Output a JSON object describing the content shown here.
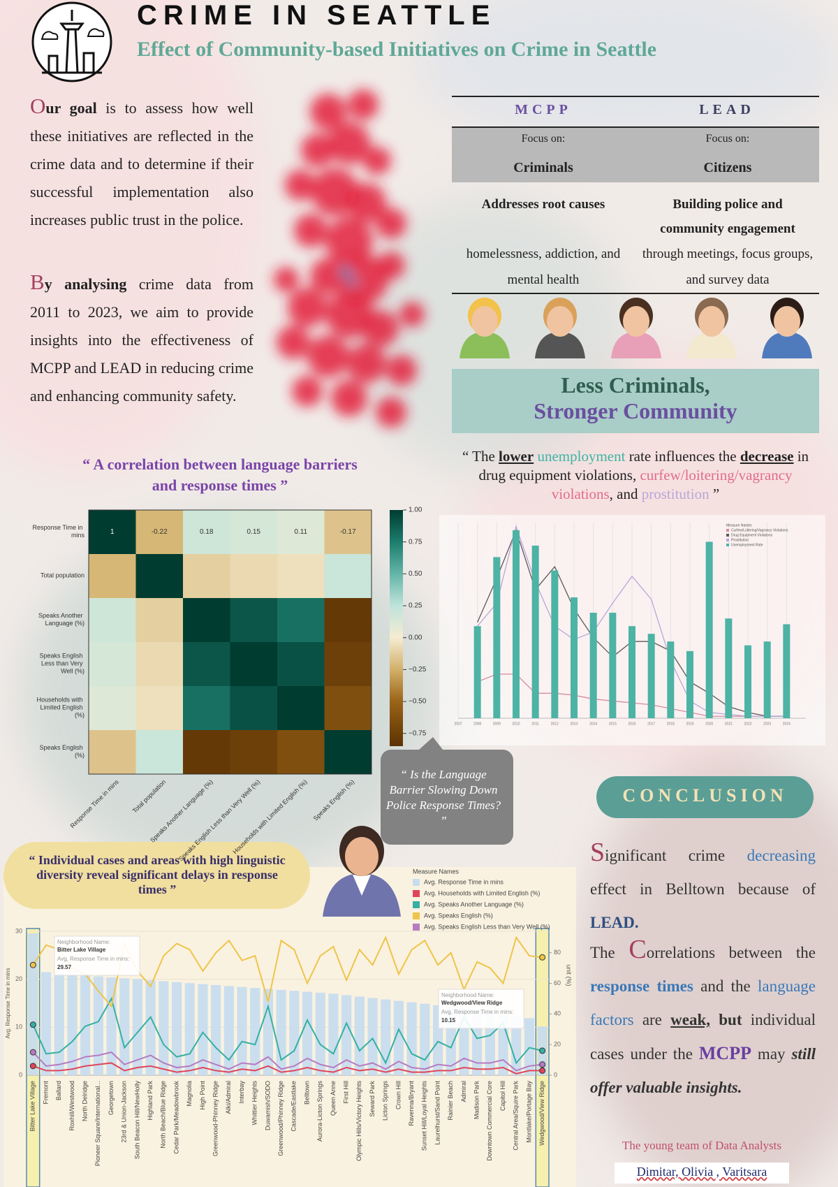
{
  "header": {
    "title": "CRIME IN SEATTLE",
    "subtitle": "Effect of Community-based Initiatives on Crime in Seattle"
  },
  "intro": {
    "p1": [
      "O",
      "ur goal",
      " is to assess how well these initiatives are reflected in the crime data and to determine if their successful implementation also increases public trust in the police."
    ],
    "p2": [
      "B",
      "y analysing",
      " crime data from 2011 to 2023, we aim to provide insights into the effectiveness of MCPP and LEAD in reducing crime and enhancing community safety."
    ]
  },
  "programs": [
    {
      "name": "MCPP",
      "focus_label": "Focus on:",
      "focus": "Criminals",
      "heading": "Addresses root causes",
      "detail": "homelessness, addiction, and mental health"
    },
    {
      "name": "LEAD",
      "focus_label": "Focus on:",
      "focus": "Citizens",
      "heading": "Building police and community engagement",
      "detail": "through meetings, focus groups, and survey data"
    }
  ],
  "banner": [
    "Less Criminals,",
    "Stronger Community"
  ],
  "trend_quote": [
    "“ The ",
    "lower",
    " unemployment",
    " rate influences the ",
    "decrease",
    " in drug equipment violations, ",
    "curfew/loitering/vagrancy violations",
    ", and ",
    "prostitution",
    " ”"
  ],
  "trend_chart": {
    "type": "bar-line",
    "legend_title": "Measure Names",
    "x": [
      2008,
      2009,
      2010,
      2011,
      2012,
      2013,
      2014,
      2015,
      2016,
      2017,
      2018,
      2019,
      2020,
      2021,
      2022,
      2023,
      2024
    ],
    "xlim": [
      2007,
      2025
    ],
    "xticks": [
      2007,
      2008,
      2009,
      2010,
      2011,
      2012,
      2013,
      2014,
      2015,
      2016,
      2017,
      2018,
      2019,
      2020,
      2021,
      2022,
      2023,
      2024
    ],
    "ylim": [
      0,
      10.2
    ],
    "series": [
      {
        "name": "Curfew/Loitering/Vagrancy Violations",
        "type": "line",
        "color": "#d98aa1",
        "values": [
          1.9,
          2.3,
          2.3,
          1.3,
          1.3,
          1.2,
          1.0,
          0.9,
          0.8,
          0.7,
          0.5,
          0.3,
          0.1,
          0.1,
          0.1,
          0.1,
          0.1
        ]
      },
      {
        "name": "Drug Equipment Violations",
        "type": "line",
        "color": "#5a5a5a",
        "values": [
          5.0,
          7.3,
          9.8,
          6.7,
          7.9,
          5.7,
          4.2,
          3.2,
          4.0,
          4.0,
          3.5,
          1.9,
          1.3,
          0.6,
          0.3,
          0.1,
          0.1
        ]
      },
      {
        "name": "Prostitution",
        "type": "line",
        "color": "#b9a6d8",
        "values": [
          4.8,
          6.0,
          10.0,
          7.1,
          4.8,
          4.1,
          4.5,
          6.0,
          7.4,
          6.2,
          3.0,
          0.9,
          0.3,
          0.2,
          0.1,
          0.1,
          0.1
        ]
      },
      {
        "name": "Unemployment Rate",
        "type": "bar",
        "color": "#4db3a4",
        "values": [
          4.8,
          8.4,
          9.8,
          9.0,
          7.7,
          6.3,
          5.5,
          5.5,
          4.8,
          4.4,
          4.0,
          3.5,
          9.2,
          5.2,
          3.8,
          4.0,
          4.9
        ]
      }
    ]
  },
  "heatmap": {
    "type": "heatmap",
    "title": "“ A correlation between language barriers and response times ”",
    "labels": [
      "Response Time in mins",
      "Total population",
      "Speaks Another Language (%)",
      "Speaks English Less than Very Well (%)",
      "Households with Limited English (%)",
      "Speaks English (%)"
    ],
    "values": [
      [
        1,
        -0.22,
        0.18,
        0.15,
        0.11,
        -0.17
      ],
      [
        -0.22,
        1,
        -0.12,
        -0.08,
        -0.05,
        0.2
      ],
      [
        0.18,
        -0.12,
        1,
        0.9,
        0.8,
        -0.8
      ],
      [
        0.15,
        -0.08,
        0.9,
        1,
        0.92,
        -0.75
      ],
      [
        0.11,
        -0.05,
        0.8,
        0.92,
        1,
        -0.65
      ],
      [
        -0.17,
        0.2,
        -0.8,
        -0.75,
        -0.65,
        1
      ]
    ],
    "vlim": [
      -0.85,
      1
    ],
    "ticks": [
      {
        "value": 1,
        "label": "1.00"
      },
      {
        "value": 0.75,
        "label": "0.75"
      },
      {
        "value": 0.5,
        "label": "0.50"
      },
      {
        "value": 0.25,
        "label": "0.25"
      },
      {
        "value": 0,
        "label": "0.00"
      },
      {
        "value": -0.25,
        "label": "−0.25"
      },
      {
        "value": -0.5,
        "label": "−0.50"
      },
      {
        "value": -0.75,
        "label": "−0.75"
      }
    ]
  },
  "bubble_quote": "“ Is the Language Barrier Slowing Down Police Response Times? ”",
  "cases_quote": "“ Individual cases and areas with high linguistic diversity reveal significant delays in response times ”",
  "response_chart": {
    "type": "bar-line",
    "legend_title": "Measure Names",
    "ylabel": "Avg. Response Time in mins",
    "y2label": "unit (%)",
    "categories": [
      "Bitter Lake Village",
      "Fremont",
      "Ballard",
      "Roxhill/Westwood",
      "North Delridge",
      "Pioneer Square/International...",
      "Georgetown",
      "23rd & Union-Jackson",
      "South Beacon Hill/NewHolly",
      "Highland Park",
      "North Beach/Blue Ridge",
      "Cedar Park/Meadowbrook",
      "Magnolia",
      "High Point",
      "Greenwood-Phinney Ridge",
      "Alki/Admiral",
      "Interbay",
      "Whittier Heights",
      "Duwamish/SODO",
      "Greenwood/Phinney Ridge",
      "Cascade/Eastlake",
      "Belltown",
      "Aurora-Licton Springs",
      "Queen Anne",
      "First Hill",
      "Olympic Hills/Victory Heights",
      "Seward Park",
      "Licton Springs",
      "Crown Hill",
      "Ravenna/Bryant",
      "Sunset Hill/Loyal Heights",
      "Laurelhurst/Sand Point",
      "Rainier Beach",
      "Admiral",
      "Madison Park",
      "Downtown Commercial Core",
      "Capitol Hill",
      "Central Area/Squire Park",
      "Montlake/Portage Bay",
      "Wedgwood/View Ridge"
    ],
    "ylim": [
      0,
      30
    ],
    "yticks": [
      0,
      10,
      20,
      30
    ],
    "y2lim": [
      0,
      94
    ],
    "y2ticks": [
      0,
      20,
      40,
      60,
      80
    ],
    "series": [
      {
        "name": "Avg. Response Time in mins",
        "type": "bar",
        "axis": "y",
        "color": "#c6dcef",
        "values": [
          29.57,
          21.5,
          21.2,
          21.0,
          20.8,
          20.6,
          20.4,
          20.2,
          20.0,
          19.8,
          19.6,
          19.4,
          19.2,
          19.0,
          18.8,
          18.6,
          18.4,
          18.2,
          18.0,
          17.8,
          17.6,
          17.4,
          17.2,
          17.0,
          16.7,
          16.4,
          16.1,
          15.8,
          15.5,
          15.2,
          14.9,
          14.6,
          14.3,
          14.0,
          13.6,
          13.2,
          12.8,
          12.4,
          11.9,
          10.15
        ]
      },
      {
        "name": "Avg. Households with Limited English (%)",
        "type": "line",
        "axis": "y2",
        "color": "#e0455a",
        "values": [
          6,
          3,
          3,
          4,
          6,
          7,
          8,
          3,
          5,
          6,
          4,
          2,
          3,
          5,
          3,
          2,
          4,
          3,
          6,
          2,
          3,
          5,
          3,
          2,
          5,
          3,
          4,
          2,
          4,
          2,
          2,
          3,
          3,
          5,
          4,
          4,
          5,
          1,
          3,
          3
        ]
      },
      {
        "name": "Avg. Speaks Another Language (%)",
        "type": "line",
        "axis": "y2",
        "color": "#35b0a2",
        "values": [
          33,
          14,
          15,
          22,
          32,
          35,
          50,
          18,
          28,
          38,
          20,
          12,
          14,
          28,
          18,
          10,
          22,
          20,
          45,
          10,
          16,
          36,
          20,
          14,
          34,
          16,
          24,
          8,
          30,
          14,
          10,
          22,
          18,
          38,
          24,
          26,
          34,
          8,
          18,
          16
        ]
      },
      {
        "name": "Avg. Speaks English (%)",
        "type": "line",
        "axis": "y2",
        "color": "#eec44a",
        "values": [
          72,
          85,
          82,
          70,
          66,
          55,
          45,
          86,
          68,
          58,
          78,
          86,
          82,
          68,
          80,
          88,
          75,
          78,
          48,
          88,
          82,
          60,
          78,
          84,
          62,
          82,
          72,
          90,
          66,
          82,
          88,
          72,
          80,
          56,
          74,
          70,
          60,
          90,
          78,
          77
        ]
      },
      {
        "name": "Avg. Speaks English Less than Very Well (%)",
        "type": "line",
        "axis": "y2",
        "color": "#b77bc2",
        "values": [
          15,
          6,
          7,
          9,
          12,
          13,
          15,
          7,
          10,
          13,
          8,
          5,
          6,
          10,
          7,
          4,
          8,
          7,
          12,
          4,
          6,
          11,
          7,
          5,
          10,
          6,
          8,
          4,
          9,
          5,
          4,
          7,
          6,
          11,
          8,
          8,
          10,
          3,
          6,
          7
        ]
      }
    ],
    "tooltips": [
      {
        "label": "Neighborhood Name:",
        "name": "Bitter Lake Village",
        "metric": "Avg. Response Time in mins:",
        "value": 29.57
      },
      {
        "label": "Neighborhood Name:",
        "name": "Wedgwood/View Ridge",
        "metric": "Avg. Response Time in mins:",
        "value": 10.15
      }
    ]
  },
  "conclusion": {
    "title": "CONCLUSION",
    "p1": [
      "S",
      "ignificant crime ",
      "decreasing",
      " effect in Belltown because of ",
      "LEAD."
    ],
    "p2": [
      "The ",
      "C",
      "orrelations between the ",
      "response times",
      " and the ",
      "language factors",
      " are ",
      "weak,",
      " but",
      " individual cases under the ",
      "MCPP",
      " may ",
      "still offer valuable insights."
    ]
  },
  "credits": {
    "team": "The young team of Data Analysts",
    "names": "Dimitar, Olivia , Varitsara"
  }
}
